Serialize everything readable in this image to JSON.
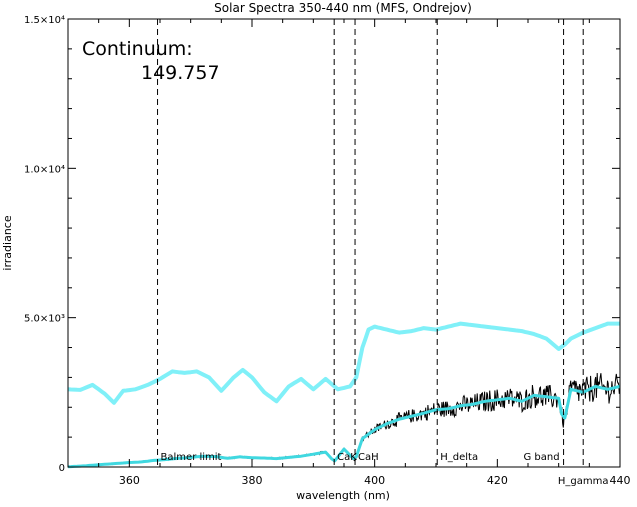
{
  "chart_data": {
    "type": "line",
    "title": "Solar Spectra 350-440 nm (MFS, Ondrejov)",
    "xlabel": "wavelength (nm)",
    "ylabel": "irradiance",
    "xlim": [
      350,
      440
    ],
    "ylim": [
      0,
      15000
    ],
    "x_ticks": [
      {
        "value": 360,
        "label": "360"
      },
      {
        "value": 380,
        "label": "380"
      },
      {
        "value": 400,
        "label": "400"
      },
      {
        "value": 420,
        "label": "420"
      },
      {
        "value": 440,
        "label": "440"
      }
    ],
    "y_ticks": [
      {
        "value": 0,
        "label": "0"
      },
      {
        "value": 5000,
        "label": "5.0×10³"
      },
      {
        "value": 10000,
        "label": "1.0×10⁴"
      },
      {
        "value": 15000,
        "label": "1.5×10⁴"
      }
    ],
    "annotation": {
      "label": "Continuum:",
      "value": "149.757"
    },
    "markers": [
      {
        "x": 364.6,
        "label": "Balmer limit",
        "label_pos": "bottom"
      },
      {
        "x": 393.4,
        "label": "CaK",
        "label_pos": "bottom"
      },
      {
        "x": 396.8,
        "label": "CaH",
        "label_pos": "bottom"
      },
      {
        "x": 410.2,
        "label": "H_delta",
        "label_pos": "bottom"
      },
      {
        "x": 430.8,
        "label": "G band",
        "label_pos": "bottom-left"
      },
      {
        "x": 434.0,
        "label": "H_gamma",
        "label_pos": "below-axis"
      }
    ],
    "grid": false,
    "series": [
      {
        "color": "#80f0f8",
        "style": "thick",
        "x": [
          350,
          352,
          354,
          356,
          357.5,
          359,
          361,
          363,
          365,
          367,
          369,
          371,
          373,
          375,
          377,
          378.5,
          380,
          382,
          384,
          386,
          388,
          390,
          392,
          394,
          396,
          397,
          398,
          399,
          400,
          402,
          404,
          406,
          408,
          410,
          412,
          414,
          416,
          418,
          420,
          422,
          424,
          426,
          428,
          430,
          431,
          432,
          434,
          436,
          438,
          440
        ],
        "values": [
          2600,
          2580,
          2750,
          2450,
          2150,
          2550,
          2600,
          2750,
          2950,
          3200,
          3150,
          3200,
          3000,
          2550,
          3000,
          3250,
          3000,
          2500,
          2200,
          2700,
          2950,
          2600,
          2950,
          2600,
          2700,
          3000,
          4000,
          4600,
          4700,
          4600,
          4500,
          4550,
          4650,
          4600,
          4700,
          4800,
          4750,
          4700,
          4650,
          4600,
          4550,
          4450,
          4300,
          3950,
          4100,
          4300,
          4500,
          4650,
          4800,
          4800
        ]
      },
      {
        "color": "#000000",
        "style": "noisy",
        "x": [
          350,
          352,
          354,
          356,
          358,
          360,
          362,
          364,
          366,
          368,
          370,
          372,
          374,
          376,
          378,
          380,
          382,
          384,
          386,
          388,
          390,
          392,
          393.4,
          395,
          396.8,
          398,
          400,
          402,
          404,
          406,
          408,
          410,
          412,
          414,
          416,
          418,
          420,
          422,
          424,
          426,
          428,
          430,
          430.8,
          432,
          434,
          436,
          438,
          440
        ],
        "values": [
          10,
          30,
          60,
          90,
          120,
          150,
          170,
          220,
          250,
          290,
          320,
          360,
          350,
          290,
          340,
          310,
          300,
          280,
          320,
          360,
          430,
          500,
          180,
          600,
          220,
          950,
          1250,
          1450,
          1600,
          1700,
          1800,
          1920,
          1950,
          2050,
          2100,
          2200,
          2250,
          2300,
          2200,
          2400,
          2350,
          2300,
          1450,
          2600,
          2500,
          2700,
          2600,
          2700
        ]
      },
      {
        "color": "#40d8e0",
        "style": "smoothed",
        "x": [
          350,
          352,
          354,
          356,
          358,
          360,
          362,
          364,
          366,
          368,
          370,
          372,
          374,
          376,
          378,
          380,
          382,
          384,
          386,
          388,
          390,
          392,
          393.4,
          395,
          396.8,
          398,
          400,
          402,
          404,
          406,
          408,
          410,
          412,
          414,
          416,
          418,
          420,
          422,
          424,
          426,
          428,
          430,
          430.8,
          432,
          434,
          436,
          438,
          440
        ],
        "values": [
          10,
          30,
          60,
          90,
          120,
          150,
          170,
          220,
          250,
          290,
          320,
          360,
          350,
          290,
          340,
          310,
          300,
          280,
          320,
          360,
          430,
          500,
          180,
          600,
          220,
          950,
          1250,
          1450,
          1600,
          1700,
          1800,
          1920,
          1950,
          2050,
          2100,
          2200,
          2250,
          2300,
          2200,
          2400,
          2350,
          2300,
          1450,
          2600,
          2500,
          2700,
          2600,
          2700
        ]
      }
    ]
  }
}
